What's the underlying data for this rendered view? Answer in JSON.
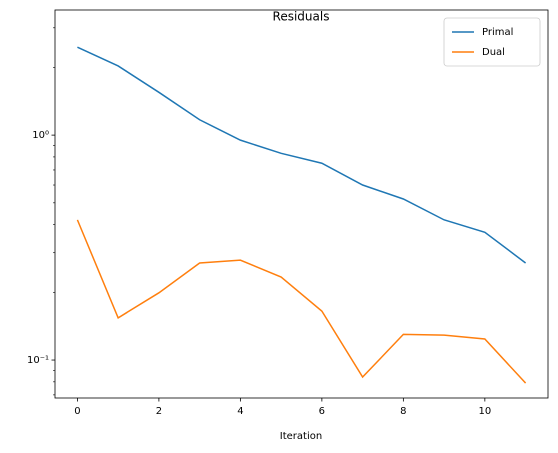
{
  "chart_data": {
    "type": "line",
    "title": "Residuals",
    "xlabel": "Iteration",
    "x": [
      0,
      1,
      2,
      3,
      4,
      5,
      6,
      7,
      8,
      9,
      10,
      11
    ],
    "series": [
      {
        "name": "Primal",
        "color": "#1f77b4",
        "values": [
          2.46,
          2.03,
          1.55,
          1.17,
          0.95,
          0.83,
          0.75,
          0.6,
          0.52,
          0.42,
          0.37,
          0.27
        ]
      },
      {
        "name": "Dual",
        "color": "#ff7f0e",
        "values": [
          0.42,
          0.154,
          0.199,
          0.27,
          0.278,
          0.234,
          0.165,
          0.084,
          0.13,
          0.129,
          0.124,
          0.079
        ]
      }
    ],
    "xlim": [
      -0.55,
      11.55
    ],
    "xticks": [
      0,
      2,
      4,
      6,
      8,
      10
    ],
    "ylim": [
      0.0678,
      3.6
    ],
    "yscale": "log",
    "yticks": [
      {
        "value": 1,
        "label": "10⁰"
      },
      {
        "value": 0.1,
        "label": "10⁻¹"
      }
    ],
    "legend": "upper right",
    "grid": false
  }
}
